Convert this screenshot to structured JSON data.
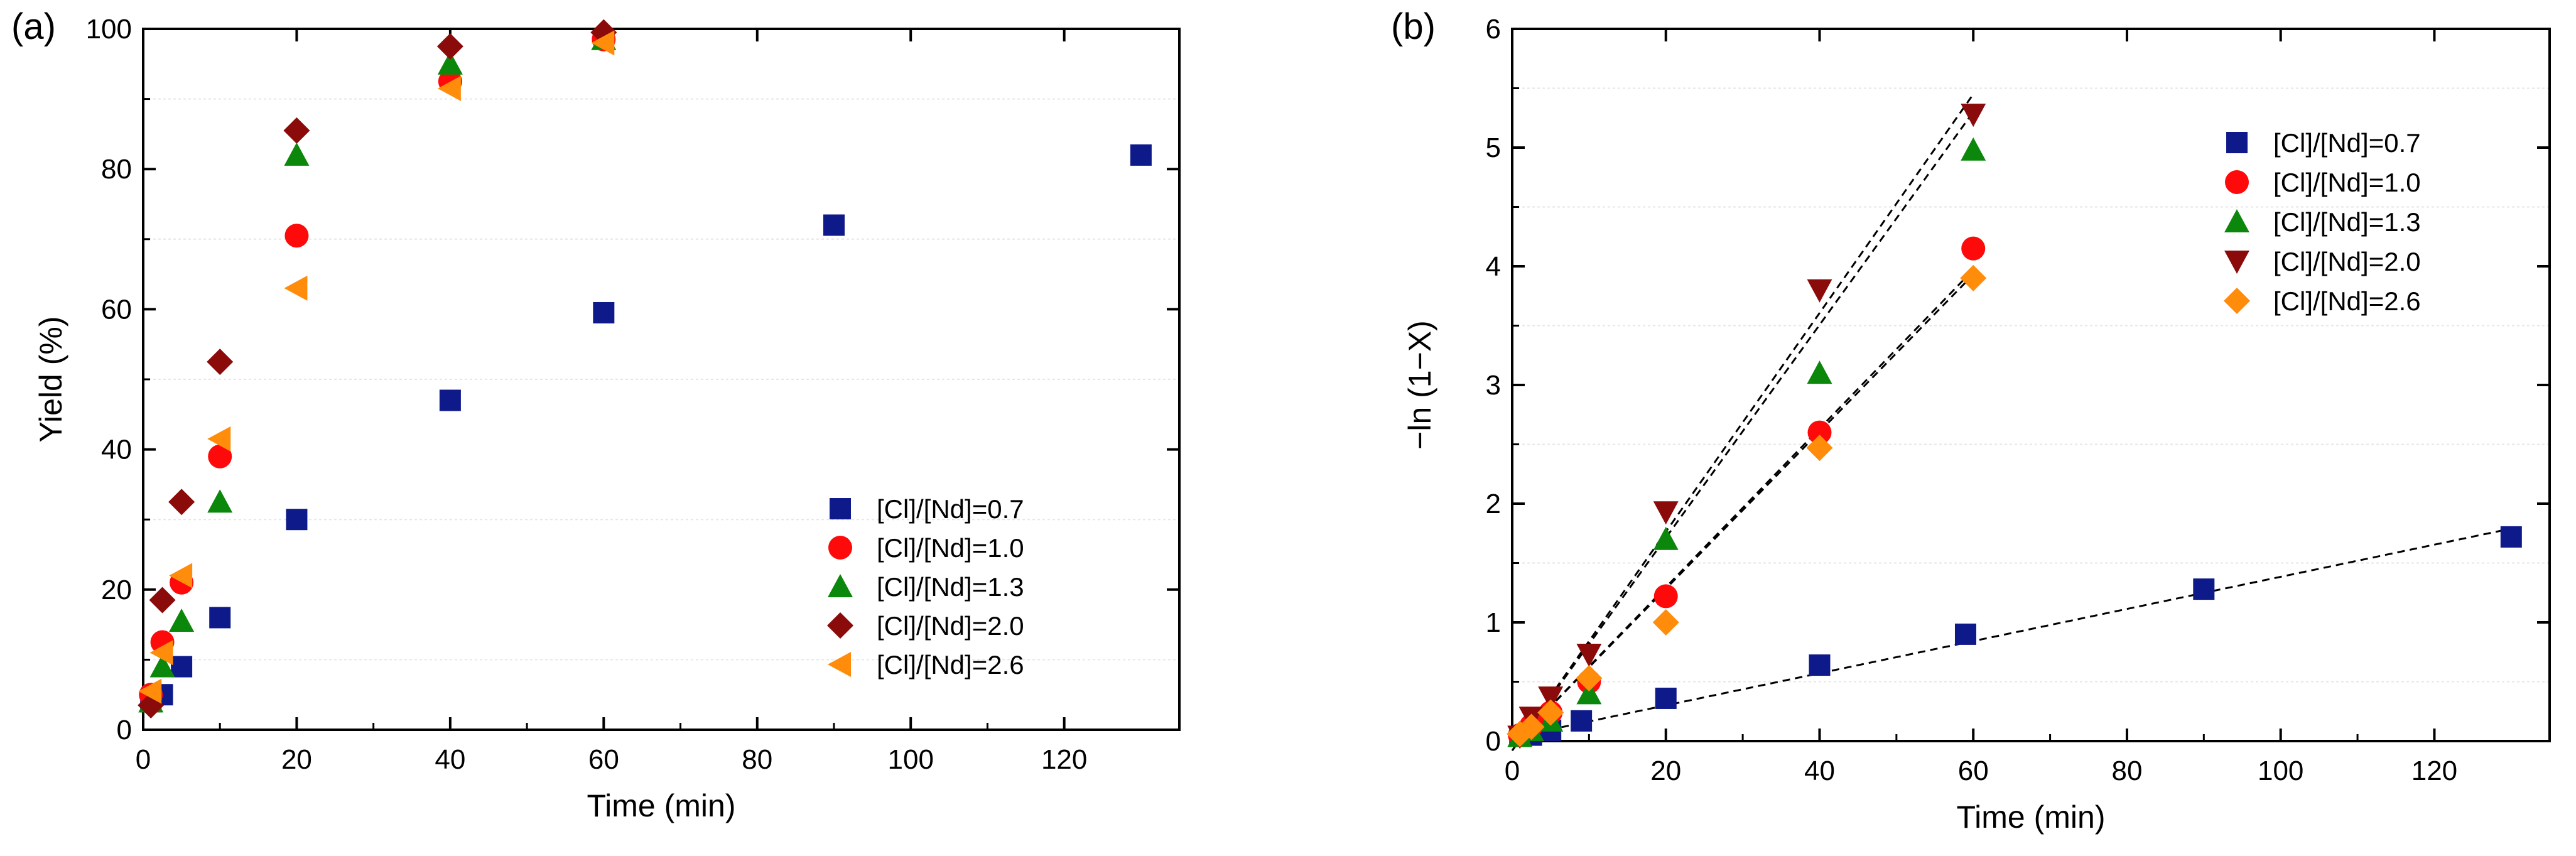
{
  "colors": {
    "s07": "#0e1a8a",
    "s10": "#ff0a0a",
    "s13": "#0b870b",
    "s20": "#8b0a0a",
    "s26": "#ff8c0a",
    "fitline": "#000000",
    "grid": "#e6e6e6"
  },
  "chart_data": [
    {
      "id": "a",
      "type": "scatter",
      "panel_label": "(a)",
      "xlabel": "Time (min)",
      "ylabel": "Yield (%)",
      "xlim": [
        0,
        135
      ],
      "ylim": [
        0,
        100
      ],
      "xticks": [
        0,
        20,
        40,
        60,
        80,
        100,
        120
      ],
      "yticks": [
        0,
        20,
        40,
        60,
        80,
        100
      ],
      "legend_position": "lower-right",
      "series": [
        {
          "name": "[Cl]/[Nd]=0.7",
          "marker": "square",
          "color_key": "s07",
          "x": [
            1,
            2.5,
            5,
            10,
            20,
            40,
            60,
            90,
            130
          ],
          "y": [
            4,
            5,
            9,
            16,
            30,
            47,
            59.5,
            72,
            82
          ]
        },
        {
          "name": "[Cl]/[Nd]=1.0",
          "marker": "circle",
          "color_key": "s10",
          "x": [
            1,
            2.5,
            5,
            10,
            20,
            40,
            60
          ],
          "y": [
            5,
            12.5,
            21,
            39,
            70.5,
            92.5,
            98.5
          ]
        },
        {
          "name": "[Cl]/[Nd]=1.3",
          "marker": "triangle-up",
          "color_key": "s13",
          "x": [
            1,
            2.5,
            5,
            10,
            20,
            40,
            60
          ],
          "y": [
            4,
            9,
            15.5,
            32.5,
            82,
            95,
            98.5
          ]
        },
        {
          "name": "[Cl]/[Nd]=2.0",
          "marker": "diamond",
          "color_key": "s20",
          "x": [
            1,
            2.5,
            5,
            10,
            20,
            40,
            60
          ],
          "y": [
            3.5,
            18.5,
            32.5,
            52.5,
            85.5,
            97.5,
            99.5
          ]
        },
        {
          "name": "[Cl]/[Nd]=2.6",
          "marker": "triangle-left",
          "color_key": "s26",
          "x": [
            1,
            2.5,
            5,
            10,
            20,
            40,
            60
          ],
          "y": [
            5.5,
            11,
            22,
            41.5,
            63,
            91.5,
            98
          ]
        }
      ]
    },
    {
      "id": "b",
      "type": "scatter",
      "panel_label": "(b)",
      "xlabel": "Time (min)",
      "ylabel": "−ln (1−X)",
      "xlim": [
        0,
        135
      ],
      "ylim": [
        0,
        6
      ],
      "xticks": [
        0,
        20,
        40,
        60,
        80,
        100,
        120
      ],
      "yticks": [
        0,
        1,
        2,
        3,
        4,
        5,
        6
      ],
      "legend_position": "upper-right",
      "series": [
        {
          "name": "[Cl]/[Nd]=0.7",
          "marker": "square",
          "color_key": "s07",
          "x": [
            1,
            2.5,
            5,
            9,
            20,
            40,
            59,
            90,
            130
          ],
          "y": [
            0.04,
            0.05,
            0.09,
            0.17,
            0.36,
            0.64,
            0.9,
            1.28,
            1.72
          ],
          "fit": {
            "x": [
              0,
              130
            ],
            "y": [
              0.03,
              1.79
            ]
          }
        },
        {
          "name": "[Cl]/[Nd]=1.0",
          "marker": "circle",
          "color_key": "s10",
          "x": [
            1,
            2.5,
            5,
            10,
            20,
            40,
            60
          ],
          "y": [
            0.05,
            0.13,
            0.24,
            0.5,
            1.22,
            2.6,
            4.15
          ],
          "fit": {
            "x": [
              0,
              60
            ],
            "y": [
              -0.04,
              3.97
            ]
          }
        },
        {
          "name": "[Cl]/[Nd]=1.3",
          "marker": "triangle-up",
          "color_key": "s13",
          "x": [
            1,
            2.5,
            5,
            10,
            20,
            40,
            60
          ],
          "y": [
            0.04,
            0.09,
            0.17,
            0.4,
            1.7,
            3.1,
            4.98
          ],
          "fit": {
            "x": [
              0,
              60
            ],
            "y": [
              -0.08,
              5.3
            ]
          }
        },
        {
          "name": "[Cl]/[Nd]=2.0",
          "marker": "triangle-down",
          "color_key": "s20",
          "x": [
            1,
            2.5,
            5,
            10,
            20,
            40,
            60
          ],
          "y": [
            0.04,
            0.2,
            0.37,
            0.73,
            1.93,
            3.8,
            5.28
          ],
          "fit": {
            "x": [
              0,
              60
            ],
            "y": [
              -0.08,
              5.45
            ]
          }
        },
        {
          "name": "[Cl]/[Nd]=2.6",
          "marker": "diamond",
          "color_key": "s26",
          "x": [
            1,
            2.5,
            5,
            10,
            20,
            40,
            60
          ],
          "y": [
            0.06,
            0.12,
            0.24,
            0.53,
            1.0,
            2.47,
            3.9
          ],
          "fit": {
            "x": [
              0,
              60
            ],
            "y": [
              -0.04,
              3.93
            ]
          }
        }
      ]
    }
  ]
}
